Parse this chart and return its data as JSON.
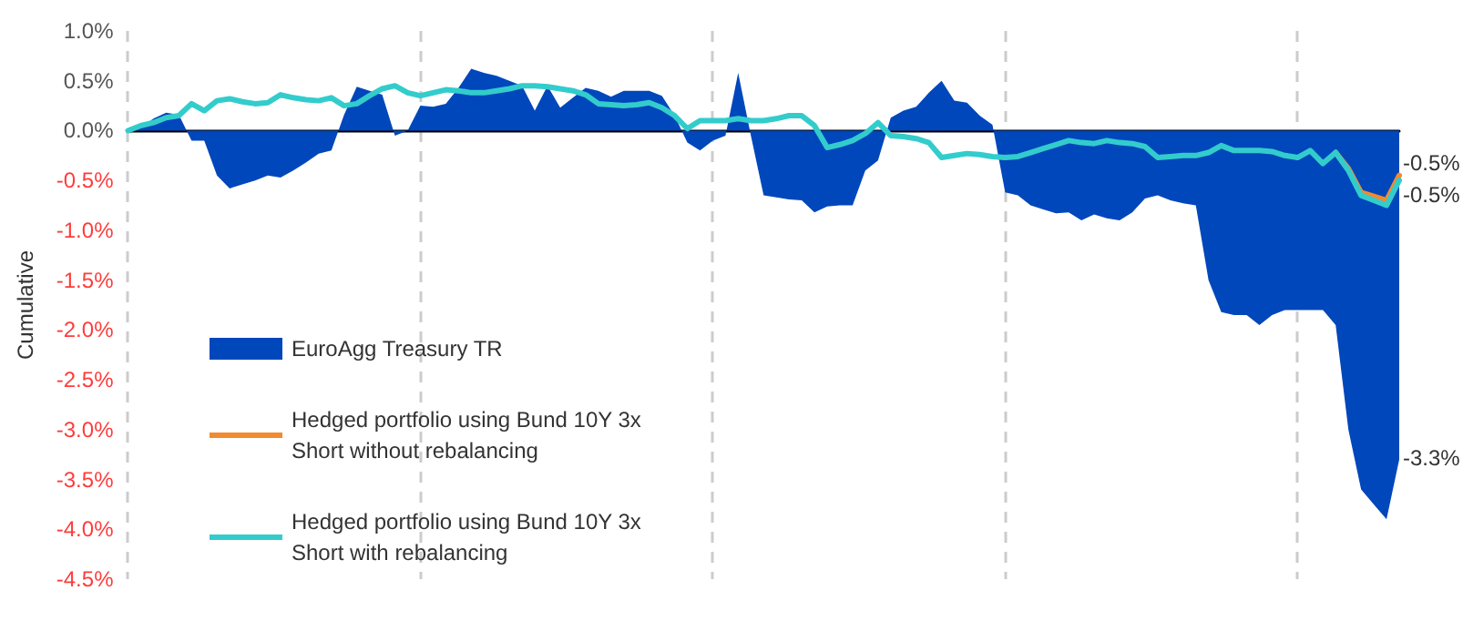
{
  "chart_data": {
    "type": "area",
    "ylabel": "Cumulative",
    "categories": [
      null,
      null,
      null,
      null,
      null,
      null,
      null,
      null,
      null,
      null,
      null,
      null,
      null,
      null,
      null,
      null,
      null,
      null,
      null,
      null,
      null,
      null,
      null,
      null,
      null,
      null,
      null,
      null,
      null,
      null,
      null,
      null,
      null,
      null,
      null,
      null,
      null,
      null,
      null,
      null,
      null,
      null,
      null,
      null,
      null,
      null,
      null,
      null,
      null,
      null,
      null,
      null,
      null,
      null,
      null,
      null,
      null,
      null,
      null,
      null,
      null,
      null,
      null,
      null,
      null,
      null,
      null,
      null,
      null,
      null,
      null,
      null,
      null,
      null,
      null,
      null,
      null,
      null,
      null,
      null,
      null,
      null,
      null,
      null,
      null,
      null,
      null,
      null,
      null,
      null,
      null,
      null,
      null,
      null,
      null,
      null,
      null,
      null,
      null,
      null,
      null
    ],
    "series": [
      {
        "name": "EuroAgg Treasury TR",
        "color": "#0047bb",
        "values": [
          0,
          0.03,
          0.12,
          0.18,
          0.16,
          -0.1,
          -0.1,
          -0.45,
          -0.58,
          -0.54,
          -0.5,
          -0.45,
          -0.47,
          -0.4,
          -0.32,
          -0.23,
          -0.2,
          0.16,
          0.44,
          0.4,
          0.36,
          -0.05,
          0,
          0.25,
          0.24,
          0.27,
          0.43,
          0.62,
          0.58,
          0.55,
          0.5,
          0.45,
          0.2,
          0.45,
          0.23,
          0.33,
          0.43,
          0.4,
          0.34,
          0.4,
          0.4,
          0.4,
          0.35,
          0.15,
          -0.12,
          -0.2,
          -0.1,
          -0.05,
          0.58,
          -0.05,
          -0.65,
          -0.67,
          -0.69,
          -0.7,
          -0.82,
          -0.76,
          -0.75,
          -0.75,
          -0.4,
          -0.3,
          0.13,
          0.2,
          0.24,
          0.38,
          0.5,
          0.3,
          0.28,
          0.15,
          0.06,
          -0.62,
          -0.65,
          -0.75,
          -0.79,
          -0.83,
          -0.82,
          -0.9,
          -0.84,
          -0.88,
          -0.9,
          -0.82,
          -0.68,
          -0.65,
          -0.7,
          -0.73,
          -0.75,
          -1.5,
          -1.82,
          -1.85,
          -1.85,
          -1.95,
          -1.85,
          -1.8,
          -1.8,
          -1.8,
          -1.8,
          -1.95,
          -3.0,
          -3.6,
          -3.75,
          -3.9,
          -3.3
        ]
      },
      {
        "name": "Hedged portfolio using Bund 10Y 3x Short without rebalancing",
        "type": "line",
        "color": "#f28a30",
        "values": [
          null,
          null,
          null,
          null,
          null,
          null,
          null,
          null,
          null,
          null,
          null,
          null,
          null,
          null,
          null,
          null,
          null,
          null,
          null,
          null,
          null,
          null,
          null,
          null,
          null,
          null,
          null,
          null,
          null,
          null,
          null,
          null,
          null,
          null,
          null,
          null,
          null,
          null,
          null,
          null,
          null,
          null,
          null,
          null,
          null,
          null,
          null,
          null,
          null,
          null,
          null,
          null,
          null,
          null,
          null,
          null,
          null,
          null,
          null,
          null,
          null,
          null,
          null,
          null,
          null,
          null,
          null,
          null,
          null,
          null,
          null,
          null,
          null,
          null,
          null,
          null,
          null,
          null,
          null,
          null,
          null,
          null,
          null,
          null,
          null,
          null,
          null,
          null,
          null,
          null,
          null,
          null,
          null,
          null,
          null,
          -0.22,
          -0.38,
          -0.62,
          -0.66,
          -0.7,
          -0.45
        ]
      },
      {
        "name": "Hedged portfolio using Bund 10Y 3x Short with rebalancing",
        "type": "line",
        "color": "#33cccc",
        "values": [
          0,
          0.05,
          0.08,
          0.13,
          0.15,
          0.27,
          0.2,
          0.3,
          0.32,
          0.29,
          0.27,
          0.28,
          0.36,
          0.33,
          0.31,
          0.3,
          0.33,
          0.25,
          0.27,
          0.35,
          0.42,
          0.45,
          0.38,
          0.35,
          0.38,
          0.41,
          0.4,
          0.38,
          0.38,
          0.4,
          0.42,
          0.45,
          0.45,
          0.44,
          0.42,
          0.4,
          0.36,
          0.27,
          0.26,
          0.25,
          0.26,
          0.28,
          0.23,
          0.15,
          0.02,
          0.1,
          0.1,
          0.1,
          0.12,
          0.1,
          0.1,
          0.12,
          0.15,
          0.15,
          0.05,
          -0.17,
          -0.14,
          -0.1,
          -0.03,
          0.08,
          -0.05,
          -0.06,
          -0.08,
          -0.12,
          -0.27,
          -0.25,
          -0.23,
          -0.24,
          -0.26,
          -0.27,
          -0.26,
          -0.22,
          -0.18,
          -0.14,
          -0.1,
          -0.12,
          -0.13,
          -0.1,
          -0.12,
          -0.13,
          -0.16,
          -0.27,
          -0.26,
          -0.25,
          -0.25,
          -0.22,
          -0.15,
          -0.2,
          -0.2,
          -0.2,
          -0.21,
          -0.25,
          -0.27,
          -0.2,
          -0.33,
          -0.22,
          -0.4,
          -0.65,
          -0.7,
          -0.75,
          -0.5
        ]
      }
    ],
    "ylim": [
      -4.5,
      1.0
    ],
    "yticks": [
      {
        "value": 1.0,
        "label": "1.0%"
      },
      {
        "value": 0.5,
        "label": "0.5%"
      },
      {
        "value": 0,
        "label": "0.0%"
      },
      {
        "value": -0.5,
        "label": "-0.5%"
      },
      {
        "value": -1.0,
        "label": "-1.0%"
      },
      {
        "value": -1.5,
        "label": "-1.5%"
      },
      {
        "value": -2.0,
        "label": "-2.0%"
      },
      {
        "value": -2.5,
        "label": "-2.5%"
      },
      {
        "value": -3.0,
        "label": "-3.0%"
      },
      {
        "value": -3.5,
        "label": "-3.5%"
      },
      {
        "value": -4.0,
        "label": "-4.0%"
      },
      {
        "value": -4.5,
        "label": "-4.5%"
      }
    ],
    "grid": "x",
    "legend": "bottom left",
    "marker": "none",
    "line_style": "solid",
    "annotations": [
      "-0.5%",
      "-0.5%",
      "-3.3%"
    ]
  }
}
